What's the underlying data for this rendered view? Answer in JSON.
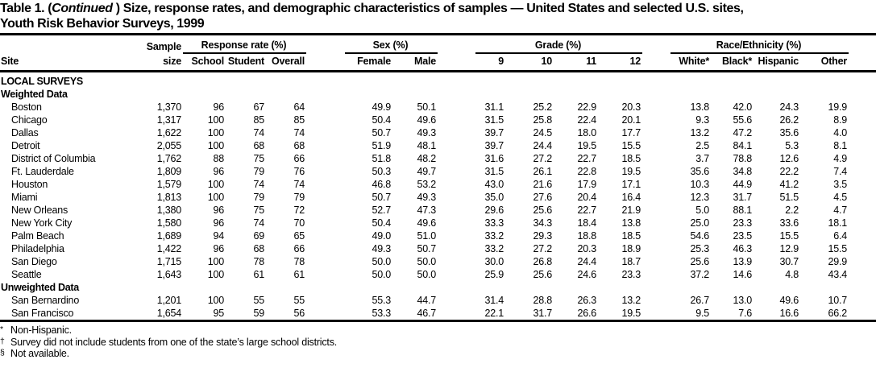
{
  "title": {
    "pre": "Table 1. (",
    "continued": "Continued",
    "post": " ) Size, response rates, and demographic characteristics of samples — United States and selected U.S. sites,",
    "line2": "Youth Risk Behavior Surveys, 1999"
  },
  "header": {
    "site": "Site",
    "sample_line1": "Sample",
    "sample_line2": "size",
    "groups": [
      {
        "label": "Response rate (%)",
        "cols": [
          "School",
          "Student",
          "Overall"
        ]
      },
      {
        "label": "Sex (%)",
        "cols": [
          "Female",
          "Male"
        ]
      },
      {
        "label": "Grade (%)",
        "cols": [
          "9",
          "10",
          "11",
          "12"
        ]
      },
      {
        "label": "Race/Ethnicity (%)",
        "cols": [
          "White*",
          "Black*",
          "Hispanic",
          "Other"
        ]
      }
    ]
  },
  "body": [
    {
      "kind": "section",
      "label": "LOCAL SURVEYS"
    },
    {
      "kind": "section",
      "label": "Weighted Data"
    },
    {
      "kind": "row",
      "site": "Boston",
      "values": [
        "1,370",
        "96",
        "67",
        "64",
        "49.9",
        "50.1",
        "31.1",
        "25.2",
        "22.9",
        "20.3",
        "13.8",
        "42.0",
        "24.3",
        "19.9"
      ]
    },
    {
      "kind": "row",
      "site": "Chicago",
      "values": [
        "1,317",
        "100",
        "85",
        "85",
        "50.4",
        "49.6",
        "31.5",
        "25.8",
        "22.4",
        "20.1",
        "9.3",
        "55.6",
        "26.2",
        "8.9"
      ]
    },
    {
      "kind": "row",
      "site": "Dallas",
      "values": [
        "1,622",
        "100",
        "74",
        "74",
        "50.7",
        "49.3",
        "39.7",
        "24.5",
        "18.0",
        "17.7",
        "13.2",
        "47.2",
        "35.6",
        "4.0"
      ]
    },
    {
      "kind": "row",
      "site": "Detroit",
      "values": [
        "2,055",
        "100",
        "68",
        "68",
        "51.9",
        "48.1",
        "39.7",
        "24.4",
        "19.5",
        "15.5",
        "2.5",
        "84.1",
        "5.3",
        "8.1"
      ]
    },
    {
      "kind": "row",
      "site": "District of Columbia",
      "values": [
        "1,762",
        "88",
        "75",
        "66",
        "51.8",
        "48.2",
        "31.6",
        "27.2",
        "22.7",
        "18.5",
        "3.7",
        "78.8",
        "12.6",
        "4.9"
      ]
    },
    {
      "kind": "row",
      "site": "Ft. Lauderdale",
      "values": [
        "1,809",
        "96",
        "79",
        "76",
        "50.3",
        "49.7",
        "31.5",
        "26.1",
        "22.8",
        "19.5",
        "35.6",
        "34.8",
        "22.2",
        "7.4"
      ]
    },
    {
      "kind": "row",
      "site": "Houston",
      "values": [
        "1,579",
        "100",
        "74",
        "74",
        "46.8",
        "53.2",
        "43.0",
        "21.6",
        "17.9",
        "17.1",
        "10.3",
        "44.9",
        "41.2",
        "3.5"
      ]
    },
    {
      "kind": "row",
      "site": "Miami",
      "values": [
        "1,813",
        "100",
        "79",
        "79",
        "50.7",
        "49.3",
        "35.0",
        "27.6",
        "20.4",
        "16.4",
        "12.3",
        "31.7",
        "51.5",
        "4.5"
      ]
    },
    {
      "kind": "row",
      "site": "New Orleans",
      "values": [
        "1,380",
        "96",
        "75",
        "72",
        "52.7",
        "47.3",
        "29.6",
        "25.6",
        "22.7",
        "21.9",
        "5.0",
        "88.1",
        "2.2",
        "4.7"
      ]
    },
    {
      "kind": "row",
      "site": "New York City",
      "values": [
        "1,580",
        "96",
        "74",
        "70",
        "50.4",
        "49.6",
        "33.3",
        "34.3",
        "18.4",
        "13.8",
        "25.0",
        "23.3",
        "33.6",
        "18.1"
      ]
    },
    {
      "kind": "row",
      "site": "Palm Beach",
      "values": [
        "1,689",
        "94",
        "69",
        "65",
        "49.0",
        "51.0",
        "33.2",
        "29.3",
        "18.8",
        "18.5",
        "54.6",
        "23.5",
        "15.5",
        "6.4"
      ]
    },
    {
      "kind": "row",
      "site": "Philadelphia",
      "values": [
        "1,422",
        "96",
        "68",
        "66",
        "49.3",
        "50.7",
        "33.2",
        "27.2",
        "20.3",
        "18.9",
        "25.3",
        "46.3",
        "12.9",
        "15.5"
      ]
    },
    {
      "kind": "row",
      "site": "San Diego",
      "values": [
        "1,715",
        "100",
        "78",
        "78",
        "50.0",
        "50.0",
        "30.0",
        "26.8",
        "24.4",
        "18.7",
        "25.6",
        "13.9",
        "30.7",
        "29.9"
      ]
    },
    {
      "kind": "row",
      "site": "Seattle",
      "values": [
        "1,643",
        "100",
        "61",
        "61",
        "50.0",
        "50.0",
        "25.9",
        "25.6",
        "24.6",
        "23.3",
        "37.2",
        "14.6",
        "4.8",
        "43.4"
      ]
    },
    {
      "kind": "section",
      "label": "Unweighted Data"
    },
    {
      "kind": "row",
      "site": "San Bernardino",
      "values": [
        "1,201",
        "100",
        "55",
        "55",
        "55.3",
        "44.7",
        "31.4",
        "28.8",
        "26.3",
        "13.2",
        "26.7",
        "13.0",
        "49.6",
        "10.7"
      ]
    },
    {
      "kind": "row",
      "site": "San Francisco",
      "values": [
        "1,654",
        "95",
        "59",
        "56",
        "53.3",
        "46.7",
        "22.1",
        "31.7",
        "26.6",
        "19.5",
        "9.5",
        "7.6",
        "16.6",
        "66.2"
      ]
    }
  ],
  "footnotes": [
    {
      "marker": "*",
      "text": "Non-Hispanic."
    },
    {
      "marker": "†",
      "text": "Survey did not include students from one of the state’s large school districts."
    },
    {
      "marker": "§",
      "text": "Not available."
    }
  ]
}
